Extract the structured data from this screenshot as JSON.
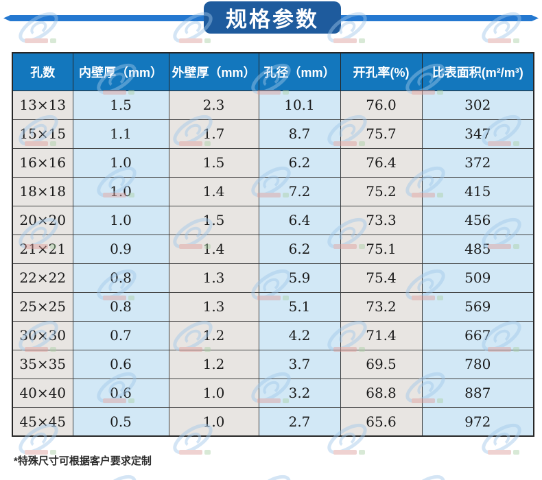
{
  "chart_data": {
    "type": "table",
    "title": "规格参数",
    "columns": [
      "孔数",
      "内壁厚（mm）",
      "外壁厚（mm）",
      "孔径（mm）",
      "开孔率(%)",
      "比表面积(m²/m³)"
    ],
    "rows": [
      [
        "13×13",
        "1.5",
        "2.3",
        "10.1",
        "76.0",
        "302"
      ],
      [
        "15×15",
        "1.1",
        "1.7",
        "8.7",
        "75.7",
        "347"
      ],
      [
        "16×16",
        "1.0",
        "1.5",
        "6.2",
        "76.4",
        "372"
      ],
      [
        "18×18",
        "1.0",
        "1.4",
        "7.2",
        "75.2",
        "415"
      ],
      [
        "20×20",
        "1.0",
        "1.5",
        "6.4",
        "73.3",
        "456"
      ],
      [
        "21×21",
        "0.9",
        "1.4",
        "6.2",
        "75.1",
        "485"
      ],
      [
        "22×22",
        "0.8",
        "1.3",
        "5.9",
        "75.4",
        "509"
      ],
      [
        "25×25",
        "0.8",
        "1.3",
        "5.1",
        "73.2",
        "569"
      ],
      [
        "30×30",
        "0.7",
        "1.2",
        "4.2",
        "71.4",
        "667"
      ],
      [
        "35×35",
        "0.6",
        "1.2",
        "3.7",
        "69.5",
        "780"
      ],
      [
        "40×40",
        "0.6",
        "1.0",
        "3.2",
        "68.8",
        "887"
      ],
      [
        "45×45",
        "0.5",
        "1.0",
        "2.7",
        "65.6",
        "972"
      ]
    ]
  },
  "footnote": "*特殊尺寸可根据客户要求定制",
  "colors": {
    "line_blue": "#2478d0",
    "banner_bg": "#1e5b9d",
    "header_bg": "#1377bd",
    "col_gray": "#e8e5e2",
    "col_blue": "#d2e8f6",
    "text_dark": "#1a1a1a"
  }
}
